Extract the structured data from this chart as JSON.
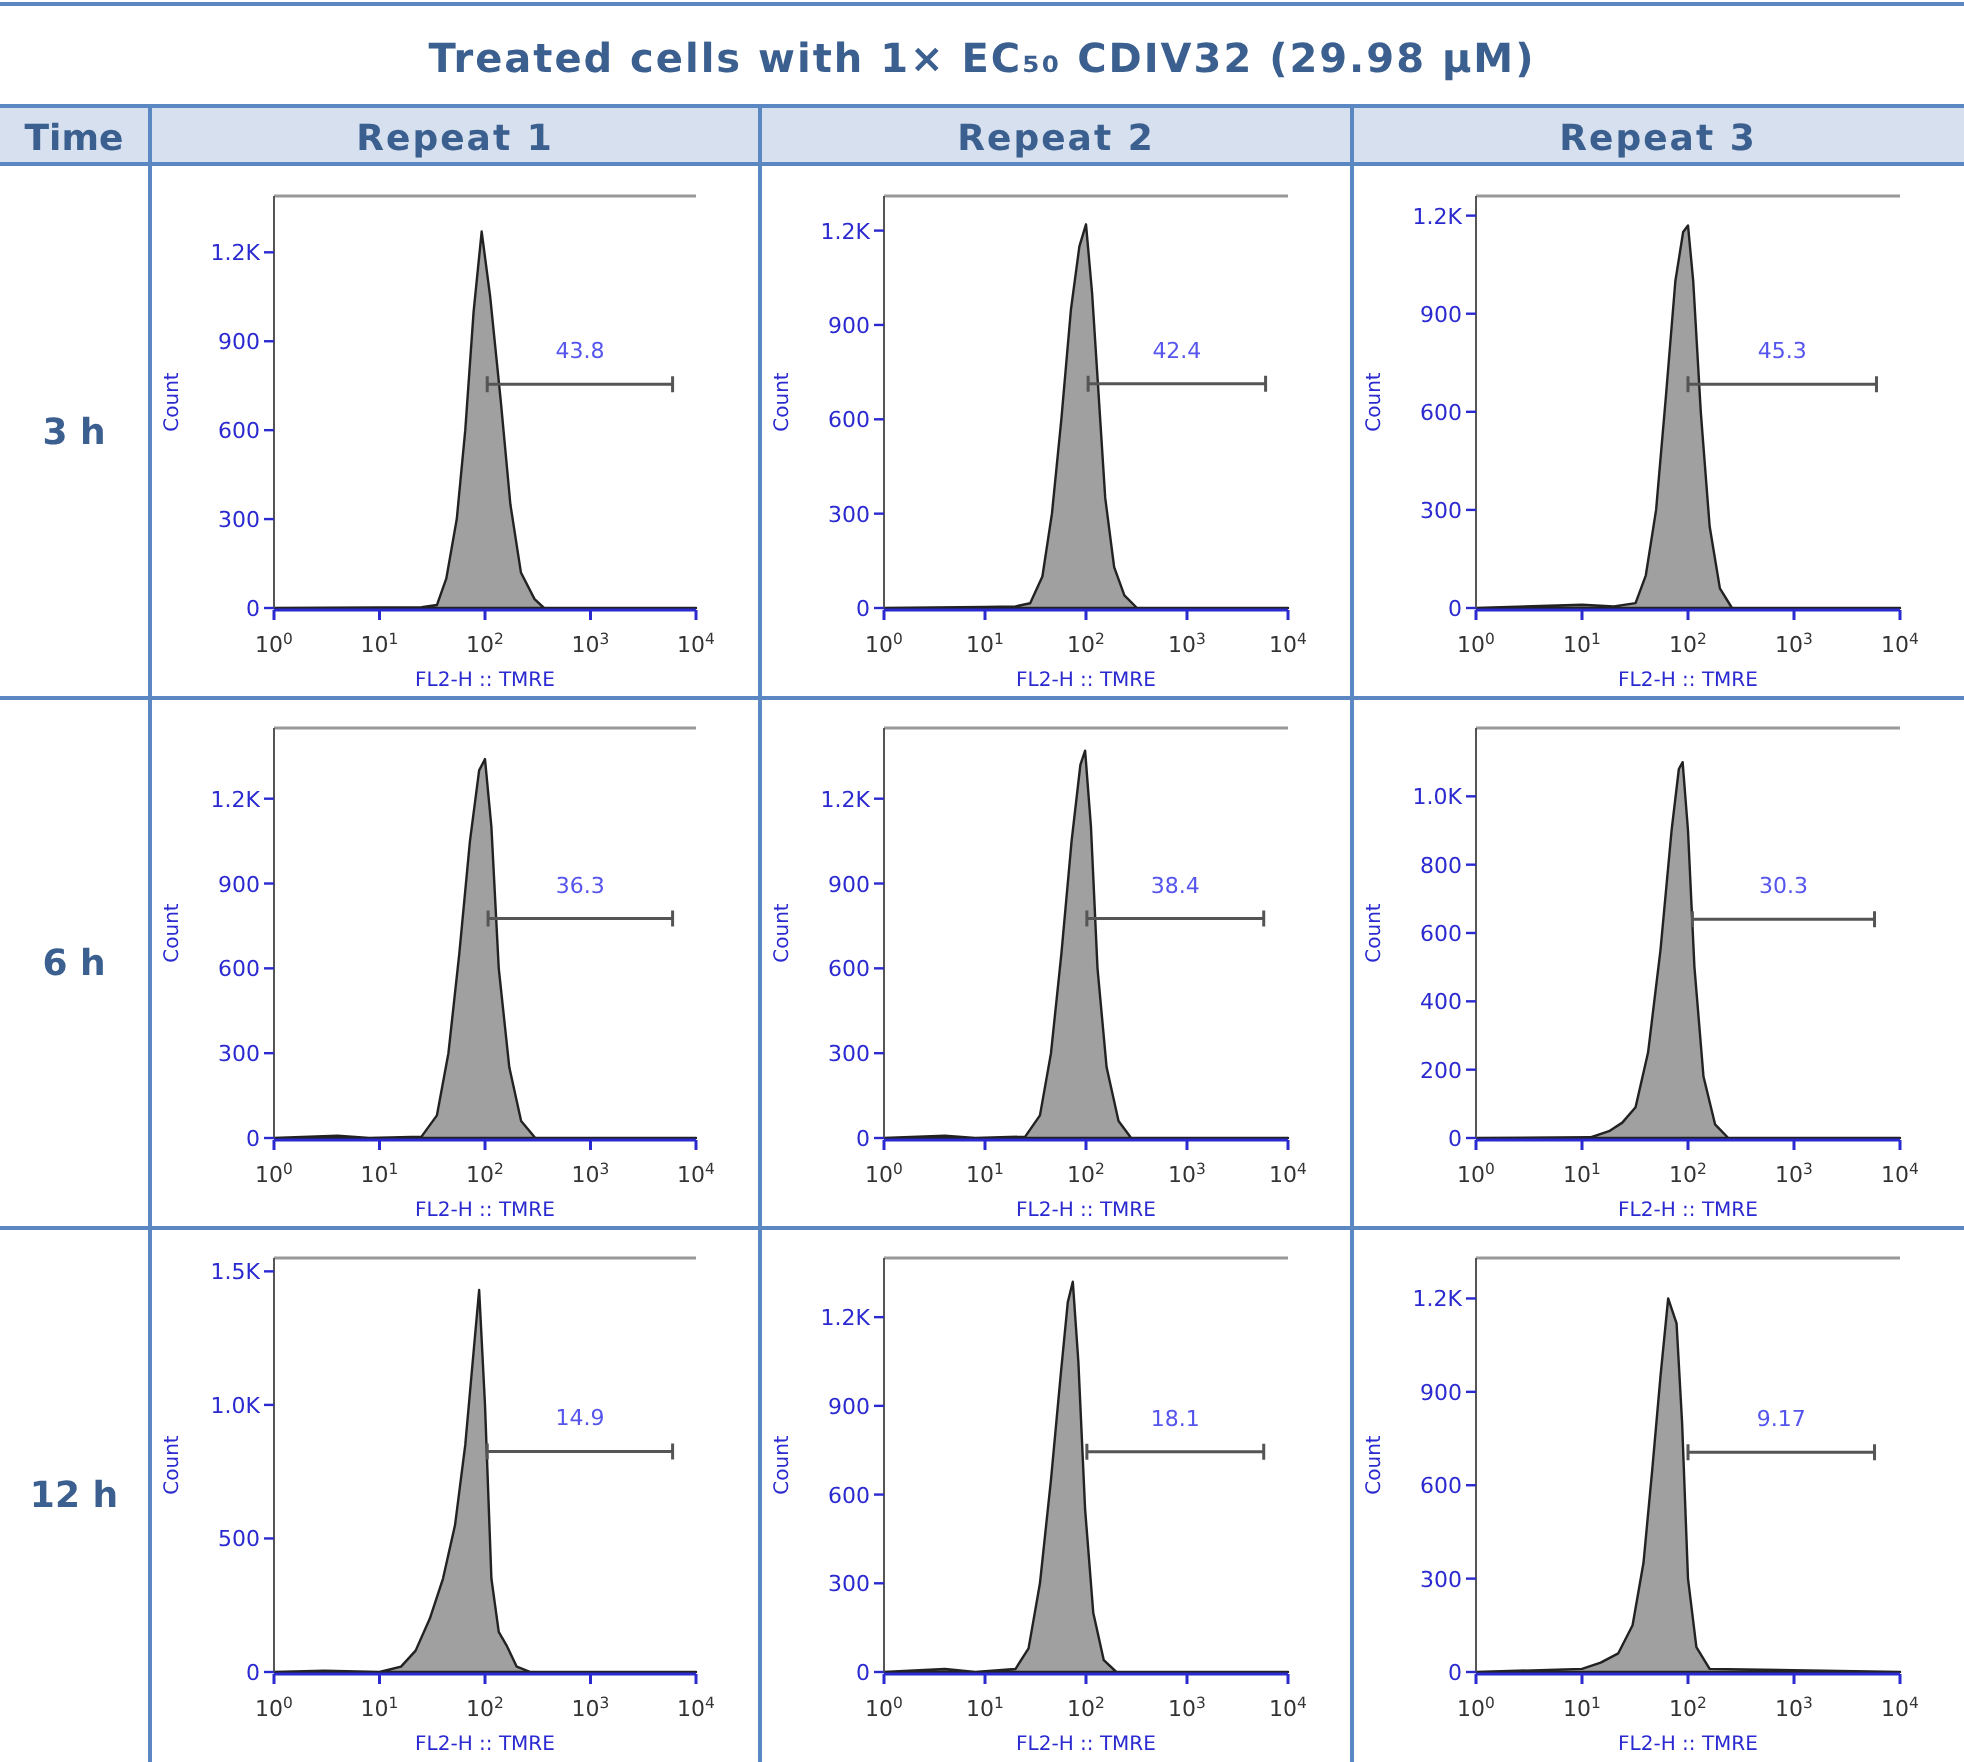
{
  "chart_data": [
    {
      "type": "other",
      "title": "Treated cells with 1× EC₅₀ CDIV32 (29.98 μM)",
      "annotations": [
        "Time",
        "Repeat 1",
        "Repeat 2",
        "Repeat 3",
        "3 h",
        "6 h",
        "12 h"
      ]
    },
    {
      "type": "area",
      "log": "x",
      "xlim": [
        1,
        10000
      ],
      "xticks": [
        {
          "value": 1,
          "label": "10$^{0}$"
        },
        {
          "value": 10,
          "label": "10$^{1}$"
        },
        {
          "value": 100,
          "label": "10$^{2}$"
        },
        {
          "value": 1000,
          "label": "10$^{3}$"
        },
        {
          "value": 10000,
          "label": "10$^{4}$"
        }
      ],
      "ylim": [
        0,
        1390
      ],
      "yticks": [
        0,
        300,
        600,
        900,
        {
          "value": 1200,
          "label": "1.2K"
        }
      ],
      "xlabel": "FL2-H :: TMRE",
      "ylabel": "Count",
      "annotations": [
        {
          "text": "43.8",
          "x": 794,
          "y": 755
        }
      ],
      "series": [
        {
          "type": "area",
          "color": "#a0a0a0",
          "x": [
            1,
            10,
            25,
            35,
            43,
            54,
            65,
            78,
            93,
            112,
            141,
            174,
            219,
            295,
            363,
            10000
          ],
          "values": [
            0,
            2,
            3,
            10,
            100,
            300,
            600,
            1000,
            1270,
            1050,
            700,
            350,
            120,
            30,
            0,
            0
          ]
        },
        {
          "type": "line",
          "color": "#555555",
          "x": [
            105,
            6000
          ],
          "values": [
            755,
            755
          ]
        }
      ]
    },
    {
      "type": "area",
      "log": "x",
      "xlim": [
        1,
        10000
      ],
      "xticks": [
        {
          "value": 1,
          "label": "10$^{0}$"
        },
        {
          "value": 10,
          "label": "10$^{1}$"
        },
        {
          "value": 100,
          "label": "10$^{2}$"
        },
        {
          "value": 1000,
          "label": "10$^{3}$"
        },
        {
          "value": 10000,
          "label": "10$^{4}$"
        }
      ],
      "ylim": [
        0,
        1310
      ],
      "yticks": [
        0,
        300,
        600,
        900,
        {
          "value": 1200,
          "label": "1.2K"
        }
      ],
      "xlabel": "FL2-H :: TMRE",
      "ylabel": "Count",
      "annotations": [
        {
          "text": "42.4",
          "x": 794,
          "y": 713
        }
      ],
      "series": [
        {
          "type": "area",
          "color": "#a0a0a0",
          "x": [
            1,
            10,
            20,
            28,
            37,
            46,
            57,
            71,
            86,
            100,
            115,
            132,
            155,
            190,
            240,
            320,
            10000
          ],
          "values": [
            0,
            3,
            5,
            15,
            100,
            300,
            600,
            950,
            1150,
            1220,
            1000,
            700,
            350,
            130,
            40,
            0,
            0
          ]
        },
        {
          "type": "line",
          "color": "#555555",
          "x": [
            105,
            6000
          ],
          "values": [
            713,
            713
          ]
        }
      ]
    },
    {
      "type": "area",
      "log": "x",
      "xlim": [
        1,
        10000
      ],
      "xticks": [
        {
          "value": 1,
          "label": "10$^{0}$"
        },
        {
          "value": 10,
          "label": "10$^{1}$"
        },
        {
          "value": 100,
          "label": "10$^{2}$"
        },
        {
          "value": 1000,
          "label": "10$^{3}$"
        },
        {
          "value": 10000,
          "label": "10$^{4}$"
        }
      ],
      "ylim": [
        0,
        1260
      ],
      "yticks": [
        0,
        300,
        600,
        900,
        {
          "value": 1200,
          "label": "1.2K"
        }
      ],
      "xlabel": "FL2-H :: TMRE",
      "ylabel": "Count",
      "annotations": [
        {
          "text": "45.3",
          "x": 775,
          "y": 684
        }
      ],
      "series": [
        {
          "type": "area",
          "color": "#a0a0a0",
          "x": [
            1,
            10,
            20,
            32,
            40,
            50,
            62,
            76,
            90,
            100,
            112,
            132,
            160,
            200,
            260,
            10000
          ],
          "values": [
            0,
            10,
            5,
            15,
            100,
            300,
            650,
            1000,
            1150,
            1170,
            1000,
            600,
            250,
            60,
            0,
            0
          ]
        },
        {
          "type": "line",
          "color": "#555555",
          "x": [
            100,
            6000
          ],
          "values": [
            684,
            684
          ]
        }
      ]
    },
    {
      "type": "area",
      "log": "x",
      "xlim": [
        1,
        10000
      ],
      "xticks": [
        {
          "value": 1,
          "label": "10$^{0}$"
        },
        {
          "value": 10,
          "label": "10$^{1}$"
        },
        {
          "value": 100,
          "label": "10$^{2}$"
        },
        {
          "value": 1000,
          "label": "10$^{3}$"
        },
        {
          "value": 10000,
          "label": "10$^{4}$"
        }
      ],
      "ylim": [
        0,
        1450
      ],
      "yticks": [
        0,
        300,
        600,
        900,
        {
          "value": 1200,
          "label": "1.2K"
        }
      ],
      "xlabel": "FL2-H :: TMRE",
      "ylabel": "Count",
      "annotations": [
        {
          "text": "36.3",
          "x": 801,
          "y": 776
        }
      ],
      "series": [
        {
          "type": "area",
          "color": "#a0a0a0",
          "x": [
            1,
            4,
            8,
            25,
            35,
            45,
            57,
            72,
            88,
            100,
            115,
            135,
            170,
            220,
            300,
            10000
          ],
          "values": [
            0,
            8,
            0,
            5,
            80,
            300,
            650,
            1050,
            1300,
            1340,
            1100,
            600,
            250,
            60,
            0,
            0
          ]
        },
        {
          "type": "line",
          "color": "#555555",
          "x": [
            107,
            6000
          ],
          "values": [
            776,
            776
          ]
        }
      ]
    },
    {
      "type": "area",
      "log": "x",
      "xlim": [
        1,
        10000
      ],
      "xticks": [
        {
          "value": 1,
          "label": "10$^{0}$"
        },
        {
          "value": 10,
          "label": "10$^{1}$"
        },
        {
          "value": 100,
          "label": "10$^{2}$"
        },
        {
          "value": 1000,
          "label": "10$^{3}$"
        },
        {
          "value": 10000,
          "label": "10$^{4}$"
        }
      ],
      "ylim": [
        0,
        1450
      ],
      "yticks": [
        0,
        300,
        600,
        900,
        {
          "value": 1200,
          "label": "1.2K"
        }
      ],
      "xlabel": "FL2-H :: TMRE",
      "ylabel": "Count",
      "annotations": [
        {
          "text": "38.4",
          "x": 766,
          "y": 776
        }
      ],
      "series": [
        {
          "type": "area",
          "color": "#a0a0a0",
          "x": [
            1,
            4,
            8,
            25,
            35,
            45,
            57,
            72,
            88,
            98,
            112,
            130,
            160,
            210,
            280,
            10000
          ],
          "values": [
            0,
            8,
            0,
            5,
            80,
            300,
            650,
            1050,
            1320,
            1370,
            1100,
            600,
            250,
            60,
            0,
            0
          ]
        },
        {
          "type": "line",
          "color": "#555555",
          "x": [
            102,
            5750
          ],
          "values": [
            776,
            776
          ]
        }
      ]
    },
    {
      "type": "area",
      "log": "x",
      "xlim": [
        1,
        10000
      ],
      "xticks": [
        {
          "value": 1,
          "label": "10$^{0}$"
        },
        {
          "value": 10,
          "label": "10$^{1}$"
        },
        {
          "value": 100,
          "label": "10$^{2}$"
        },
        {
          "value": 1000,
          "label": "10$^{3}$"
        },
        {
          "value": 10000,
          "label": "10$^{4}$"
        }
      ],
      "ylim": [
        0,
        1200
      ],
      "yticks": [
        0,
        200,
        400,
        600,
        800,
        {
          "value": 1000,
          "label": "1.0K"
        }
      ],
      "xlabel": "FL2-H :: TMRE",
      "ylabel": "Count",
      "annotations": [
        {
          "text": "30.3",
          "x": 795,
          "y": 640
        }
      ],
      "series": [
        {
          "type": "area",
          "color": "#a0a0a0",
          "x": [
            1,
            12,
            18,
            24,
            32,
            42,
            55,
            70,
            82,
            89,
            100,
            115,
            140,
            180,
            240,
            10000
          ],
          "values": [
            0,
            2,
            20,
            45,
            90,
            250,
            550,
            900,
            1080,
            1100,
            900,
            500,
            180,
            40,
            0,
            0
          ]
        },
        {
          "type": "line",
          "color": "#555555",
          "x": [
            110,
            5750
          ],
          "values": [
            640,
            640
          ]
        }
      ]
    },
    {
      "type": "area",
      "log": "x",
      "xlim": [
        1,
        10000
      ],
      "xticks": [
        {
          "value": 1,
          "label": "10$^{0}$"
        },
        {
          "value": 10,
          "label": "10$^{1}$"
        },
        {
          "value": 100,
          "label": "10$^{2}$"
        },
        {
          "value": 1000,
          "label": "10$^{3}$"
        },
        {
          "value": 10000,
          "label": "10$^{4}$"
        }
      ],
      "ylim": [
        0,
        1550
      ],
      "yticks": [
        0,
        500,
        {
          "value": 1000,
          "label": "1.0K"
        },
        {
          "value": 1500,
          "label": "1.5K"
        }
      ],
      "xlabel": "FL2-H :: TMRE",
      "ylabel": "Count",
      "annotations": [
        {
          "text": "14.9",
          "x": 794,
          "y": 826
        }
      ],
      "series": [
        {
          "type": "area",
          "color": "#a0a0a0",
          "x": [
            1,
            3,
            10,
            16,
            22,
            30,
            40,
            52,
            65,
            78,
            88,
            100,
            115,
            135,
            160,
            200,
            270,
            10000
          ],
          "values": [
            0,
            5,
            0,
            20,
            80,
            200,
            350,
            550,
            850,
            1200,
            1430,
            1000,
            350,
            150,
            100,
            20,
            0,
            0
          ]
        },
        {
          "type": "line",
          "color": "#555555",
          "x": [
            105,
            6000
          ],
          "values": [
            826,
            826
          ]
        }
      ]
    },
    {
      "type": "area",
      "log": "x",
      "xlim": [
        1,
        10000
      ],
      "xticks": [
        {
          "value": 1,
          "label": "10$^{0}$"
        },
        {
          "value": 10,
          "label": "10$^{1}$"
        },
        {
          "value": 100,
          "label": "10$^{2}$"
        },
        {
          "value": 1000,
          "label": "10$^{3}$"
        },
        {
          "value": 10000,
          "label": "10$^{4}$"
        }
      ],
      "ylim": [
        0,
        1400
      ],
      "yticks": [
        0,
        300,
        600,
        900,
        {
          "value": 1200,
          "label": "1.2K"
        }
      ],
      "xlabel": "FL2-H :: TMRE",
      "ylabel": "Count",
      "annotations": [
        {
          "text": "18.1",
          "x": 766,
          "y": 745
        }
      ],
      "series": [
        {
          "type": "area",
          "color": "#a0a0a0",
          "x": [
            1,
            4,
            8,
            20,
            27,
            35,
            45,
            56,
            66,
            74,
            84,
            98,
            118,
            150,
            200,
            10000
          ],
          "values": [
            0,
            10,
            0,
            10,
            80,
            300,
            650,
            1000,
            1250,
            1320,
            1050,
            550,
            200,
            40,
            0,
            0
          ]
        },
        {
          "type": "line",
          "color": "#555555",
          "x": [
            102,
            5750
          ],
          "values": [
            745,
            745
          ]
        }
      ]
    },
    {
      "type": "area",
      "log": "x",
      "xlim": [
        1,
        10000
      ],
      "xticks": [
        {
          "value": 1,
          "label": "10$^{0}$"
        },
        {
          "value": 10,
          "label": "10$^{1}$"
        },
        {
          "value": 100,
          "label": "10$^{2}$"
        },
        {
          "value": 1000,
          "label": "10$^{3}$"
        },
        {
          "value": 10000,
          "label": "10$^{4}$"
        }
      ],
      "ylim": [
        0,
        1330
      ],
      "yticks": [
        0,
        300,
        600,
        900,
        {
          "value": 1200,
          "label": "1.2K"
        }
      ],
      "xlabel": "FL2-H :: TMRE",
      "ylabel": "Count",
      "annotations": [
        {
          "text": "9.17",
          "x": 758,
          "y": 706
        }
      ],
      "series": [
        {
          "type": "area",
          "color": "#a0a0a0",
          "x": [
            1,
            10,
            15,
            22,
            30,
            38,
            46,
            55,
            65,
            78,
            88,
            100,
            120,
            160,
            10000
          ],
          "values": [
            0,
            10,
            30,
            60,
            150,
            350,
            650,
            950,
            1200,
            1120,
            800,
            300,
            80,
            10,
            0
          ]
        },
        {
          "type": "line",
          "color": "#555555",
          "x": [
            100,
            5750
          ],
          "values": [
            706,
            706
          ]
        }
      ]
    }
  ]
}
